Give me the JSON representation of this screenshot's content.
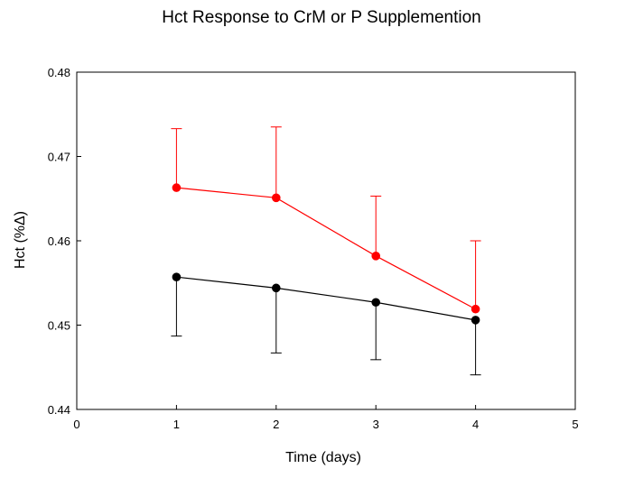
{
  "chart_data": {
    "type": "line",
    "title": "Hct Response to CrM or P Supplemention",
    "xlabel": "Time (days)",
    "ylabel": "Hct (%Δ)",
    "xlim": [
      0,
      5
    ],
    "ylim": [
      0.44,
      0.48
    ],
    "x_ticks": [
      "0",
      "1",
      "2",
      "3",
      "4",
      "5"
    ],
    "y_ticks": [
      "0.44",
      "0.45",
      "0.46",
      "0.47",
      "0.48"
    ],
    "grid": false,
    "x": [
      1,
      2,
      3,
      4
    ],
    "series": [
      {
        "color": "#ff0000",
        "values": [
          0.4663,
          0.4651,
          0.4582,
          0.4519
        ],
        "error_upper": [
          0.4733,
          0.4735,
          0.4653,
          0.46
        ],
        "error_direction": "up"
      },
      {
        "color": "#000000",
        "values": [
          0.4557,
          0.4544,
          0.4527,
          0.4506
        ],
        "error_lower": [
          0.4487,
          0.4467,
          0.4459,
          0.4441
        ],
        "error_direction": "down"
      }
    ]
  }
}
